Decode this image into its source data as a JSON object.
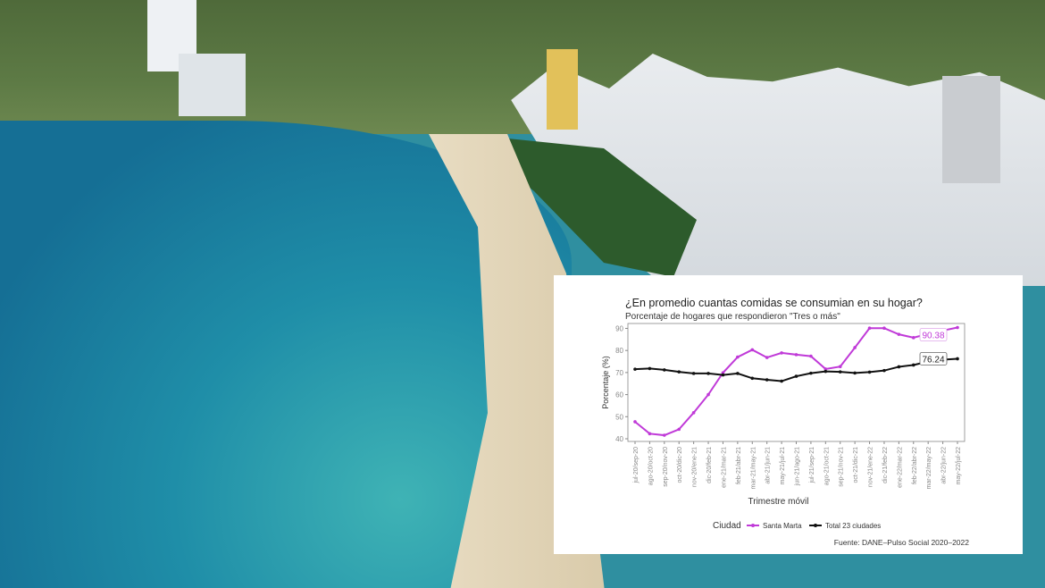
{
  "chart_data": {
    "type": "line",
    "title": "¿En promedio cuantas comidas se consumian en su hogar?",
    "subtitle": "Porcentaje de hogares que respondieron \"Tres o más\"",
    "xlabel": "Trimestre móvil",
    "ylabel": "Porcentaje (%)",
    "ylim": [
      40,
      91
    ],
    "yticks": [
      40,
      50,
      60,
      70,
      80,
      90
    ],
    "grid": false,
    "legend_title": "Ciudad",
    "legend_position": "bottom",
    "source": "Fuente: DANE–Pulso Social 2020–2022",
    "categories": [
      "jul-20/sep-20",
      "ago-20/oct-20",
      "sep-20/nov-20",
      "oct-20/dic-20",
      "nov-20/ene-21",
      "dic-20/feb-21",
      "ene-21/mar-21",
      "feb-21/abr-21",
      "mar-21/may-21",
      "abr-21/jun-21",
      "may-21/jul-21",
      "jun-21/ago-21",
      "jul-21/sep-21",
      "ago-21/oct-21",
      "sep-21/nov-21",
      "oct-21/dic-21",
      "nov-21/ene-22",
      "dic-21/feb-22",
      "ene-22/mar-22",
      "feb-22/abr-22",
      "mar-22/may-22",
      "abr-22/jun-22",
      "may-22/jul-22"
    ],
    "series": [
      {
        "name": "Santa Marta",
        "color": "#c03ad8",
        "end_label": "90.38",
        "values": [
          47.7,
          42.3,
          41.6,
          44.3,
          51.8,
          60.0,
          69.9,
          77.0,
          80.3,
          76.8,
          78.9,
          78.1,
          77.4,
          71.6,
          72.7,
          81.3,
          90.1,
          90.1,
          87.3,
          85.8,
          87.5,
          89.0,
          90.38
        ]
      },
      {
        "name": "Total 23 ciudades",
        "color": "#111111",
        "end_label": "76.24",
        "values": [
          71.5,
          71.8,
          71.2,
          70.3,
          69.6,
          69.6,
          68.9,
          69.6,
          67.4,
          66.7,
          66.1,
          68.3,
          69.7,
          70.5,
          70.3,
          69.8,
          70.2,
          70.9,
          72.6,
          73.4,
          75.0,
          75.8,
          76.24
        ]
      }
    ]
  }
}
